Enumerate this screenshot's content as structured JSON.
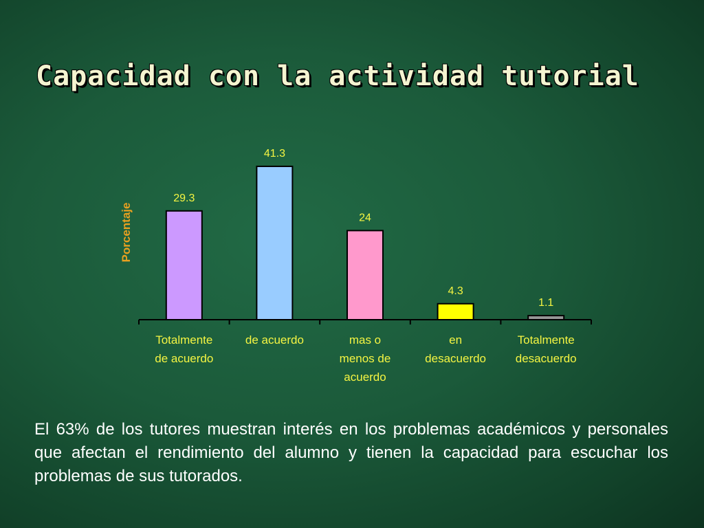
{
  "slide": {
    "title": "Capacidad con la actividad tutorial",
    "caption": "El 63% de los tutores muestran interés en los problemas académicos y personales que afectan el rendimiento del alumno y tienen la capacidad para escuchar los problemas de sus tutorados."
  },
  "colors": {
    "background": "#1e6040",
    "title_text": "#f4f4d0",
    "label_text": "#f5f542",
    "axis_title": "#e8a020",
    "caption_text": "#ffffff"
  },
  "chart_data": {
    "type": "bar",
    "title": "",
    "xlabel": "",
    "ylabel": "Porcentaje",
    "ylim": [
      0,
      45
    ],
    "grid": false,
    "legend": "none",
    "categories": [
      [
        "Totalmente",
        "de acuerdo"
      ],
      [
        "de acuerdo"
      ],
      [
        "mas o",
        "menos de",
        "acuerdo"
      ],
      [
        "en",
        "desacuerdo"
      ],
      [
        "Totalmente",
        "desacuerdo"
      ]
    ],
    "values": [
      29.3,
      41.3,
      24,
      4.3,
      1.1
    ],
    "data_labels": [
      "29.3",
      "41.3",
      "24",
      "4.3",
      "1.1"
    ],
    "bar_colors": [
      "#cc99ff",
      "#99ccff",
      "#ff99cc",
      "#ffff00",
      "#969696"
    ]
  }
}
